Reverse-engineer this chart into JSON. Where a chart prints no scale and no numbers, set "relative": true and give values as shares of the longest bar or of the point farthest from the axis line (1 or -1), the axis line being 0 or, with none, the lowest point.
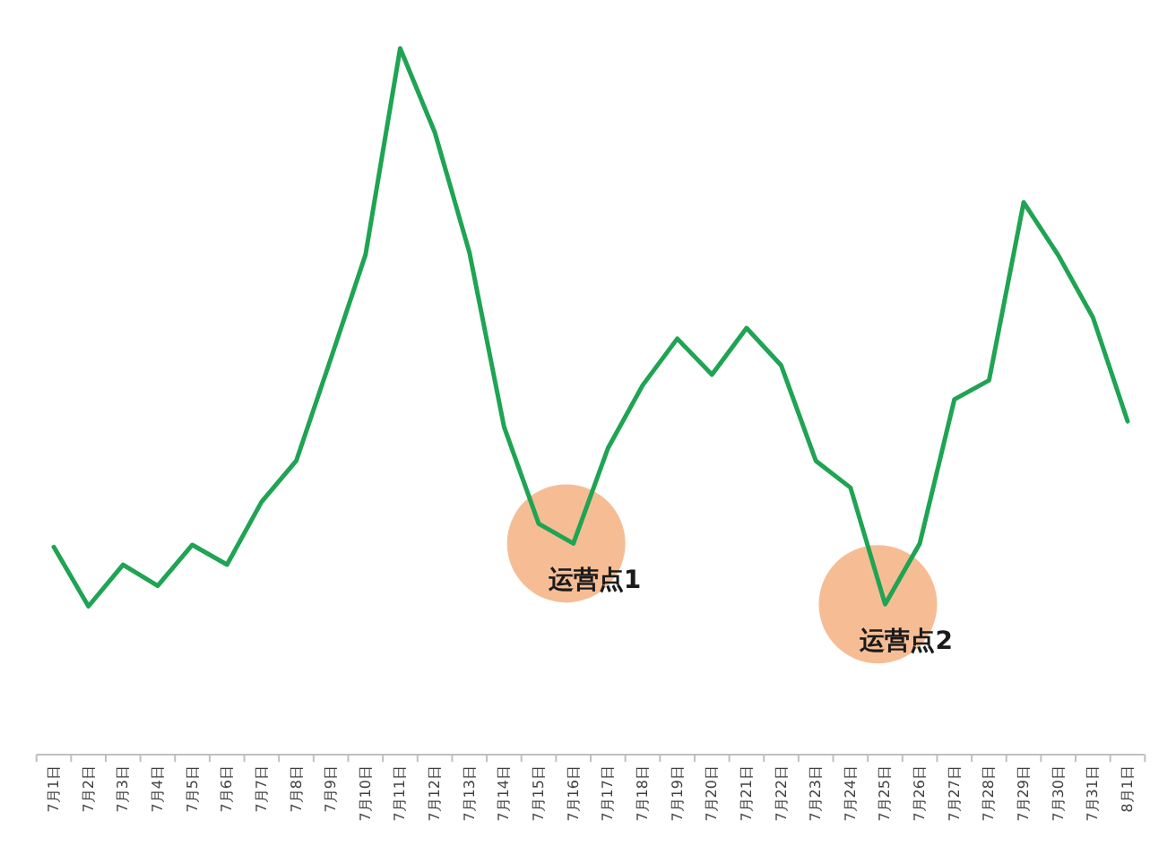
{
  "chart_data": {
    "type": "line",
    "relative": true,
    "categories": [
      "7月1日",
      "7月2日",
      "7月3日",
      "7月4日",
      "7月5日",
      "7月6日",
      "7月7日",
      "7月8日",
      "7月9日",
      "7月10日",
      "7月11日",
      "7月12日",
      "7月13日",
      "7月14日",
      "7月15日",
      "7月16日",
      "7月17日",
      "7月18日",
      "7月19日",
      "7月20日",
      "7月21日",
      "7月22日",
      "7月23日",
      "7月24日",
      "7月25日",
      "7月26日",
      "7月27日",
      "7月28日",
      "7月29日",
      "7月30日",
      "7月31日",
      "8月1日"
    ],
    "series": [
      {
        "color": "#1fa453",
        "values": [
          0.294,
          0.21,
          0.269,
          0.239,
          0.297,
          0.269,
          0.358,
          0.416,
          0.561,
          0.708,
          1.0,
          0.881,
          0.711,
          0.464,
          0.327,
          0.299,
          0.434,
          0.523,
          0.589,
          0.538,
          0.604,
          0.551,
          0.416,
          0.378,
          0.213,
          0.299,
          0.503,
          0.53,
          0.782,
          0.707,
          0.619,
          0.472
        ]
      }
    ],
    "annotations": [
      {
        "text": "运营点1",
        "x": "7月16日",
        "y": 0.299
      },
      {
        "text": "运营点2",
        "x": "7月25日",
        "y": 0.213
      }
    ],
    "marker": "none",
    "line_style": "solid"
  }
}
